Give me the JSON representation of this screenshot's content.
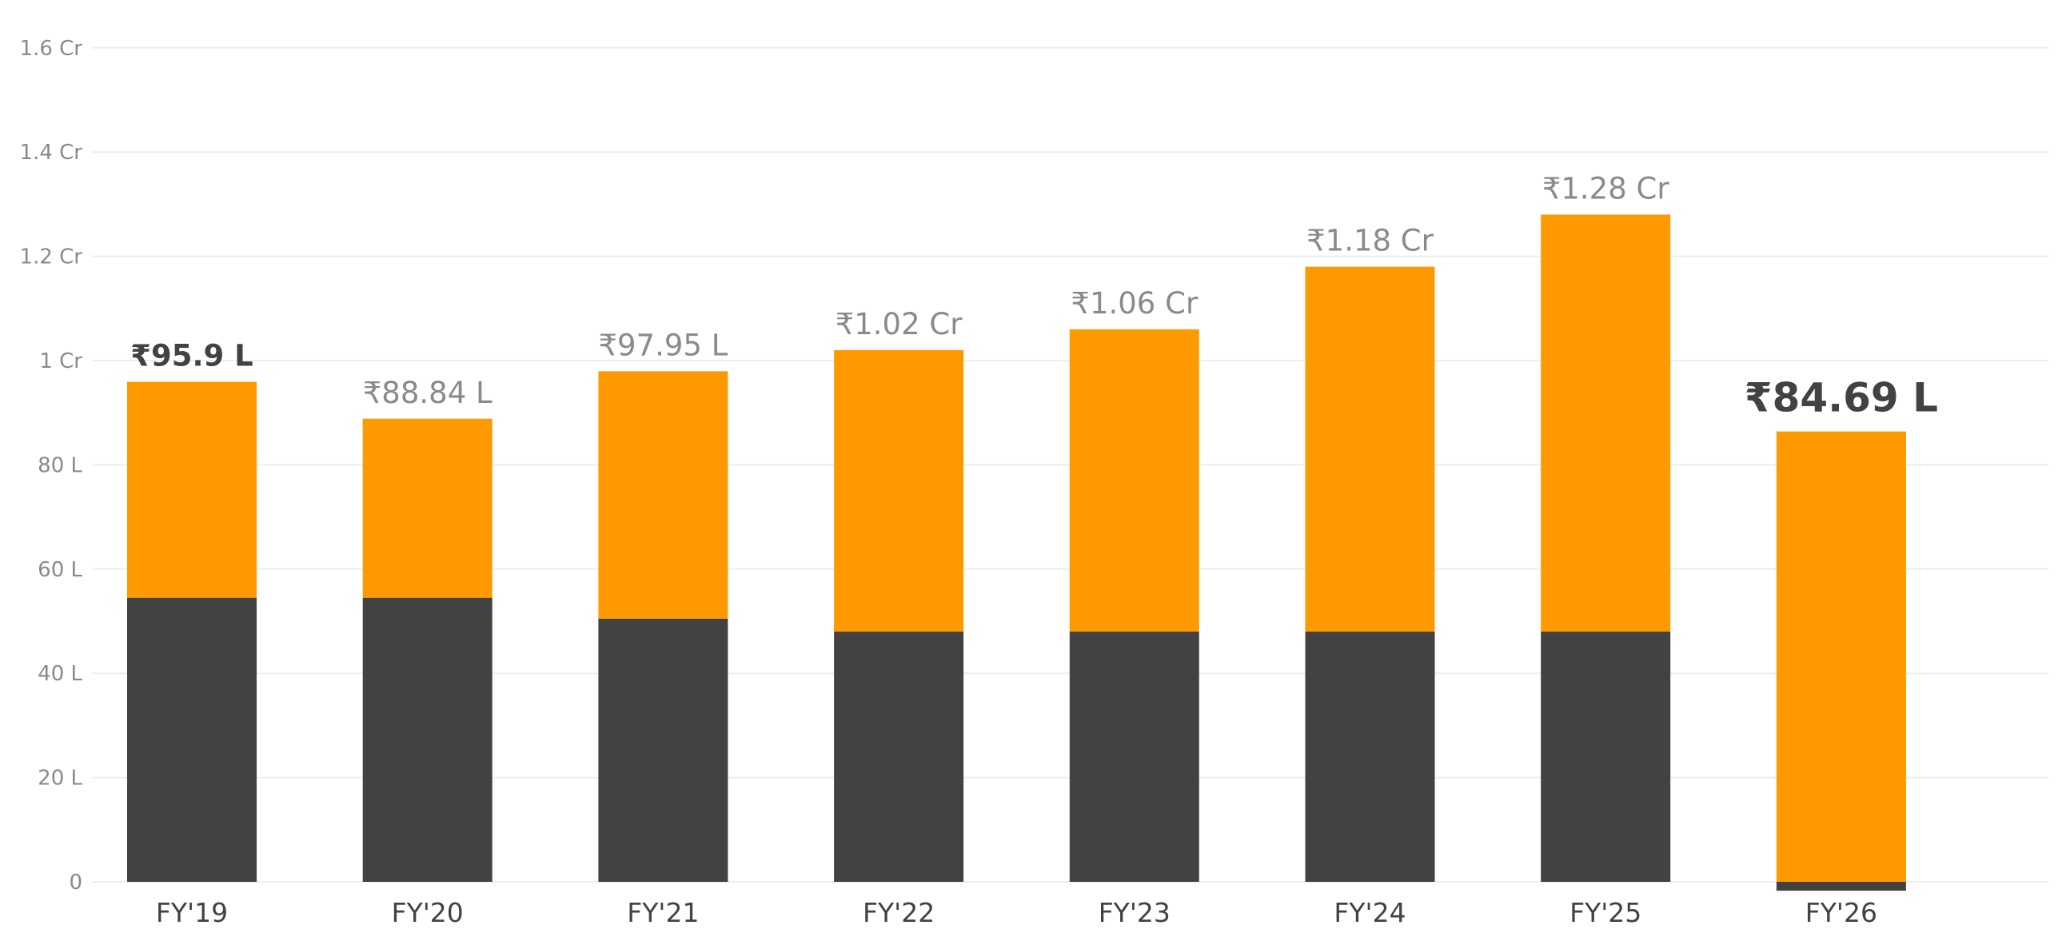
{
  "chart_data": {
    "type": "bar",
    "stacked": true,
    "categories": [
      "FY'19",
      "FY'20",
      "FY'21",
      "FY'22",
      "FY'23",
      "FY'24",
      "FY'25",
      "FY'26"
    ],
    "series": [
      {
        "color": "#424242",
        "values": [
          54.5,
          54.5,
          50.5,
          48,
          48,
          48,
          48,
          -1.7
        ]
      },
      {
        "color": "#FF9900",
        "values": [
          41.4,
          34.34,
          47.45,
          54,
          58,
          70,
          80,
          86.4
        ]
      }
    ],
    "totals": [
      95.9,
      88.84,
      97.95,
      102,
      106,
      118,
      128,
      84.69
    ],
    "data_labels": [
      "₹95.9 L",
      "₹88.84 L",
      "₹97.95 L",
      "₹1.02 Cr",
      "₹1.06 Cr",
      "₹1.18 Cr",
      "₹1.28 Cr",
      "₹84.69 L"
    ],
    "highlighted_labels": [
      0,
      7
    ],
    "highlight_label_color": "#424242",
    "label_color": "#8a8a8a",
    "y_ticks": [
      0,
      20,
      40,
      60,
      80,
      100,
      120,
      140,
      160
    ],
    "y_tick_labels": [
      "0",
      "20 L",
      "40 L",
      "60 L",
      "80 L",
      "1 Cr",
      "1.2 Cr",
      "1.4 Cr",
      "1.6 Cr"
    ],
    "ylim": [
      0,
      160
    ],
    "unit": "L",
    "grid": true,
    "legend": "none"
  }
}
